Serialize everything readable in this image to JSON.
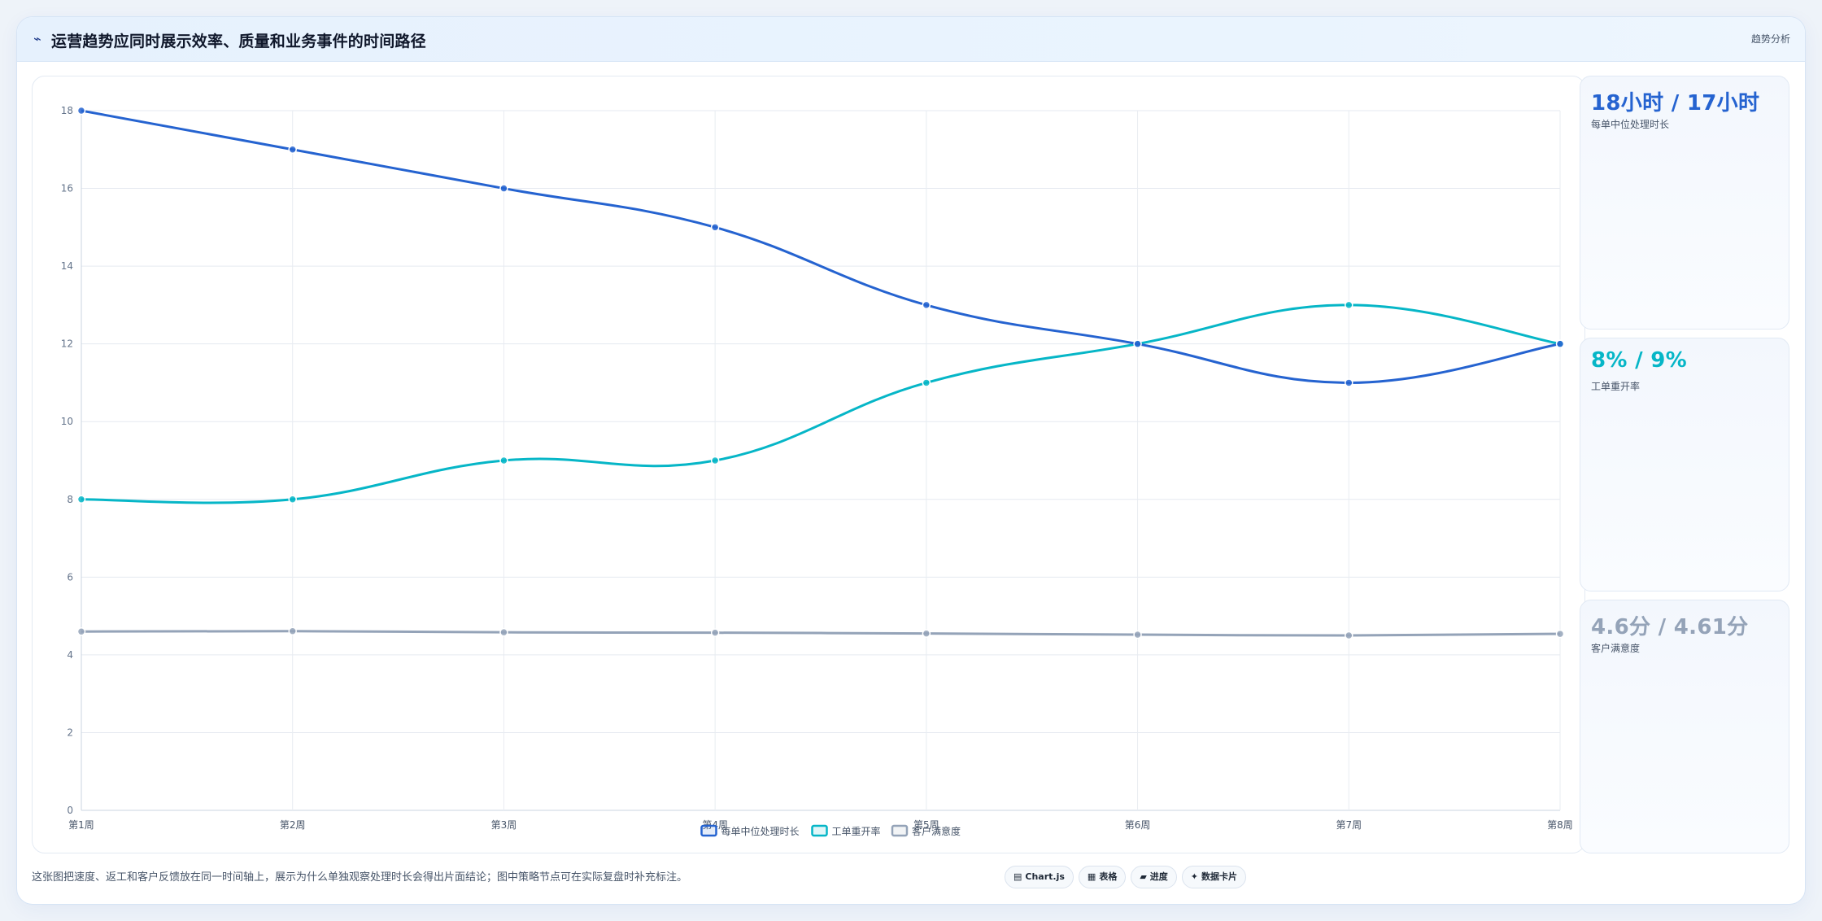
{
  "header": {
    "icon": "trend-line-icon",
    "title": "运营趋势应同时展示效率、质量和业务事件的时间路径",
    "tag": "趋势分析"
  },
  "kpis": [
    {
      "value": "18小时 / 17小时",
      "label": "每单中位处理时长",
      "color": "#2563d0"
    },
    {
      "value": "8% / 9%",
      "label": "工单重开率",
      "color": "#06b6c7"
    },
    {
      "value": "4.6分 / 4.61分",
      "label": "客户满意度",
      "color": "#94a3b8"
    }
  ],
  "footer": {
    "note": "这张图把速度、返工和客户反馈放在同一时间轴上，展示为什么单独观察处理时长会得出片面结论；图中策略节点可在实际复盘时补充标注。",
    "chips": [
      {
        "icon": "chart-icon",
        "glyph": "▤",
        "label": "Chart.js"
      },
      {
        "icon": "table-icon",
        "glyph": "▦",
        "label": "表格"
      },
      {
        "icon": "progress-icon",
        "glyph": "▰",
        "label": "进度"
      },
      {
        "icon": "card-icon",
        "glyph": "✦",
        "label": "数据卡片"
      }
    ]
  },
  "chart_data": {
    "type": "line",
    "categories": [
      "第1周",
      "第2周",
      "第3周",
      "第4周",
      "第5周",
      "第6周",
      "第7周",
      "第8周"
    ],
    "ylim": [
      0,
      18
    ],
    "yticks": [
      0,
      2,
      4,
      6,
      8,
      10,
      12,
      14,
      16,
      18
    ],
    "grid": true,
    "legend": "bottom",
    "series": [
      {
        "name": "每单中位处理时长",
        "color": "#2563d0",
        "values": [
          18,
          17,
          16,
          15,
          13,
          12,
          11,
          12
        ]
      },
      {
        "name": "工单重开率",
        "color": "#06b6c7",
        "values": [
          8,
          8,
          9,
          9,
          11,
          12,
          13,
          12
        ]
      },
      {
        "name": "客户满意度",
        "color": "#94a3b8",
        "values": [
          4.6,
          4.61,
          4.58,
          4.57,
          4.55,
          4.52,
          4.5,
          4.54
        ]
      }
    ]
  }
}
